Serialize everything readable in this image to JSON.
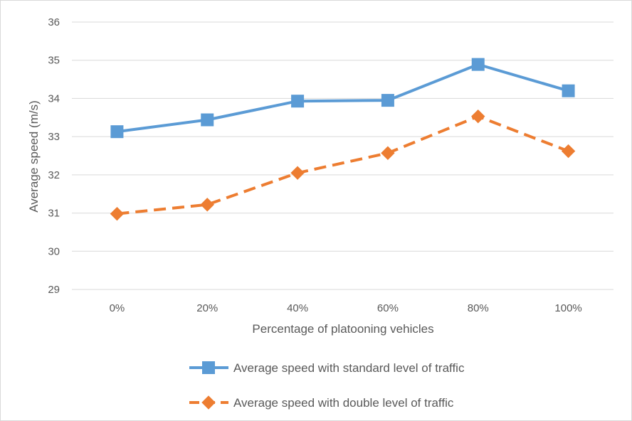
{
  "chart_data": {
    "type": "line",
    "title": "",
    "xlabel": "Percentage of platooning vehicles",
    "ylabel": "Average speed (m/s)",
    "categories": [
      "0%",
      "20%",
      "40%",
      "60%",
      "80%",
      "100%"
    ],
    "ylim": [
      29,
      36
    ],
    "yticks": [
      "29",
      "30",
      "31",
      "32",
      "33",
      "34",
      "35",
      "36"
    ],
    "grid": true,
    "legend_position": "bottom",
    "series": [
      {
        "name": "Average speed with standard level of traffic",
        "values": [
          33.13,
          33.44,
          33.93,
          33.95,
          34.89,
          34.2
        ],
        "color": "#5b9bd5",
        "line_style": "solid",
        "marker": "square"
      },
      {
        "name": "Average speed with double level of traffic",
        "values": [
          30.98,
          31.22,
          32.05,
          32.57,
          33.53,
          32.62
        ],
        "color": "#ed7d31",
        "line_style": "dashed",
        "marker": "diamond"
      }
    ]
  }
}
